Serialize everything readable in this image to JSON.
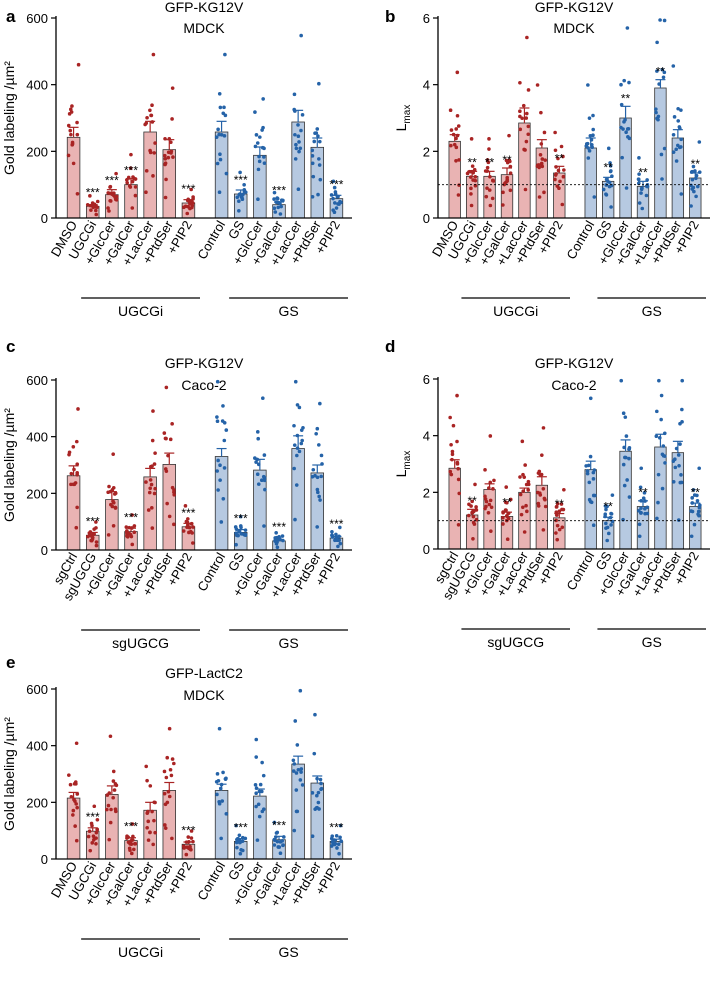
{
  "figure": {
    "colors": {
      "red_fill": "#e9b3b3",
      "red_dot": "#a92424",
      "blue_fill": "#b6c9e1",
      "blue_dot": "#2563a8"
    }
  },
  "chart_data": [
    {
      "type": "bar",
      "panel": "a",
      "title": "GFP-KG12V",
      "subtitle": "MDCK",
      "ylabel": "Gold labeling /µm²",
      "ylim": [
        0,
        600
      ],
      "yticks": [
        0,
        200,
        400,
        600
      ],
      "categories": [
        "DMSO",
        "UGCGi",
        "+GlcCer",
        "+GalCer",
        "+LacCer",
        "+PtdSer",
        "+PIP2",
        "Control",
        "GS",
        "+GlcCer",
        "+GalCer",
        "+LacCer",
        "+PtdSer",
        "+PIP2"
      ],
      "series": [
        {
          "name": "mean",
          "values": [
            242,
            35,
            70,
            100,
            258,
            205,
            45,
            258,
            72,
            188,
            40,
            288,
            212,
            58
          ]
        }
      ],
      "sems": [
        30,
        5,
        15,
        18,
        32,
        30,
        10,
        32,
        12,
        25,
        8,
        35,
        28,
        10
      ],
      "colors": [
        "red",
        "red",
        "red",
        "red",
        "red",
        "red",
        "red",
        "blue",
        "blue",
        "blue",
        "blue",
        "blue",
        "blue",
        "blue"
      ],
      "annotations": [
        "",
        "***",
        "***",
        "***",
        "",
        "",
        "***",
        "",
        "***",
        "",
        "***",
        "",
        "",
        "***"
      ],
      "groups": [
        {
          "label": "UGCGi",
          "from": 1,
          "to": 6
        },
        {
          "label": "GS",
          "from": 8,
          "to": 13
        }
      ]
    },
    {
      "type": "bar",
      "panel": "b",
      "title": "GFP-KG12V",
      "subtitle": "MDCK",
      "ylabel": "Lmax",
      "ylim": [
        0,
        6
      ],
      "yticks": [
        0,
        2,
        4,
        6
      ],
      "categories": [
        "DMSO",
        "UGCGi",
        "+GlcCer",
        "+GalCer",
        "+LacCer",
        "+PtdSer",
        "+PIP2",
        "Control",
        "GS",
        "+GlcCer",
        "+GalCer",
        "+LacCer",
        "+PtdSer",
        "+PIP2"
      ],
      "series": [
        {
          "name": "mean",
          "values": [
            2.3,
            1.25,
            1.25,
            1.3,
            2.85,
            2.1,
            1.35,
            2.1,
            1.1,
            3.0,
            0.95,
            3.9,
            2.4,
            1.2
          ]
        }
      ],
      "sems": [
        0.2,
        0.15,
        0.15,
        0.2,
        0.45,
        0.25,
        0.2,
        0.3,
        0.12,
        0.35,
        0.15,
        0.25,
        0.25,
        0.15
      ],
      "colors": [
        "red",
        "red",
        "red",
        "red",
        "red",
        "red",
        "red",
        "blue",
        "blue",
        "blue",
        "blue",
        "blue",
        "blue",
        "blue"
      ],
      "annotations": [
        "",
        "**",
        "**",
        "**",
        "",
        "",
        "**",
        "",
        "**",
        "**",
        "**",
        "**",
        "",
        "**"
      ],
      "groups": [
        {
          "label": "UGCGi",
          "from": 1,
          "to": 6
        },
        {
          "label": "GS",
          "from": 8,
          "to": 13
        }
      ]
    },
    {
      "type": "bar",
      "panel": "c",
      "title": "GFP-KG12V",
      "subtitle": "Caco-2",
      "ylabel": "Gold labeling /µm²",
      "ylim": [
        0,
        600
      ],
      "yticks": [
        0,
        200,
        400,
        600
      ],
      "categories": [
        "sgCtrl",
        "sgUGCG",
        "+GlcCer",
        "+GalCer",
        "+LacCer",
        "+PtdSer",
        "+PIP2",
        "Control",
        "GS",
        "+GlcCer",
        "+GalCer",
        "+LacCer",
        "+PtdSer",
        "+PIP2"
      ],
      "series": [
        {
          "name": "mean",
          "values": [
            262,
            52,
            178,
            65,
            258,
            302,
            82,
            330,
            62,
            282,
            32,
            358,
            272,
            42
          ]
        }
      ],
      "sems": [
        35,
        10,
        28,
        12,
        30,
        40,
        12,
        28,
        10,
        38,
        5,
        45,
        28,
        6
      ],
      "colors": [
        "red",
        "red",
        "red",
        "red",
        "red",
        "red",
        "red",
        "blue",
        "blue",
        "blue",
        "blue",
        "blue",
        "blue",
        "blue"
      ],
      "annotations": [
        "",
        "***",
        "",
        "***",
        "",
        "",
        "***",
        "",
        "***",
        "",
        "***",
        "",
        "",
        "***"
      ],
      "groups": [
        {
          "label": "sgUGCG",
          "from": 1,
          "to": 6
        },
        {
          "label": "GS",
          "from": 8,
          "to": 13
        }
      ]
    },
    {
      "type": "bar",
      "panel": "d",
      "title": "GFP-KG12V",
      "subtitle": "Caco-2",
      "ylabel": "Lmax",
      "ylim": [
        0,
        6
      ],
      "yticks": [
        0,
        2,
        4,
        6
      ],
      "categories": [
        "sgCtrl",
        "sgUGCG",
        "+GlcCer",
        "+GalCer",
        "+LacCer",
        "+PtdSer",
        "+PIP2",
        "Control",
        "GS",
        "+GlcCer",
        "+GalCer",
        "+LacCer",
        "+PtdSer",
        "+PIP2"
      ],
      "series": [
        {
          "name": "mean",
          "values": [
            2.85,
            1.2,
            2.1,
            1.15,
            2.0,
            2.25,
            1.1,
            2.8,
            1.0,
            3.45,
            1.5,
            3.6,
            3.4,
            1.5
          ]
        }
      ],
      "sems": [
        0.3,
        0.2,
        0.2,
        0.15,
        0.15,
        0.3,
        0.15,
        0.3,
        0.12,
        0.4,
        0.2,
        0.45,
        0.4,
        0.12
      ],
      "colors": [
        "red",
        "red",
        "red",
        "red",
        "red",
        "red",
        "red",
        "blue",
        "blue",
        "blue",
        "blue",
        "blue",
        "blue",
        "blue"
      ],
      "annotations": [
        "",
        "**",
        "",
        "**",
        "",
        "",
        "**",
        "",
        "**",
        "",
        "**",
        "",
        "",
        "**"
      ],
      "groups": [
        {
          "label": "sgUGCG",
          "from": 1,
          "to": 6
        },
        {
          "label": "GS",
          "from": 8,
          "to": 13
        }
      ]
    },
    {
      "type": "bar",
      "panel": "e",
      "title": "GFP-LactC2",
      "subtitle": "MDCK",
      "ylabel": "Gold labeling /µm²",
      "ylim": [
        0,
        600
      ],
      "yticks": [
        0,
        200,
        400,
        600
      ],
      "categories": [
        "DMSO",
        "UGCGi",
        "+GlcCer",
        "+GalCer",
        "+LacCer",
        "+PtdSer",
        "+PIP2",
        "Control",
        "GS",
        "+GlcCer",
        "+GalCer",
        "+LacCer",
        "+PtdSer",
        "+PIP2"
      ],
      "series": [
        {
          "name": "mean",
          "values": [
            215,
            98,
            228,
            65,
            172,
            242,
            52,
            242,
            62,
            222,
            68,
            335,
            268,
            62
          ]
        }
      ],
      "sems": [
        20,
        12,
        30,
        10,
        28,
        28,
        8,
        22,
        10,
        25,
        12,
        28,
        25,
        8
      ],
      "colors": [
        "red",
        "red",
        "red",
        "red",
        "red",
        "red",
        "red",
        "blue",
        "blue",
        "blue",
        "blue",
        "blue",
        "blue",
        "blue"
      ],
      "annotations": [
        "",
        "***",
        "",
        "***",
        "",
        "",
        "***",
        "",
        "***",
        "",
        "***",
        "",
        "",
        "***"
      ],
      "groups": [
        {
          "label": "UGCGi",
          "from": 1,
          "to": 6
        },
        {
          "label": "GS",
          "from": 8,
          "to": 13
        }
      ]
    }
  ]
}
